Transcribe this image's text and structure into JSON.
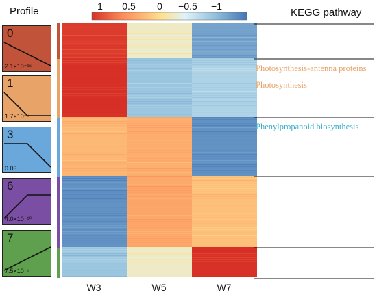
{
  "header": {
    "profile_title": "Profile",
    "kegg_title": "KEGG pathway"
  },
  "colorbar": {
    "ticks": [
      "1",
      "0.5",
      "0",
      "−0.5",
      "−1"
    ],
    "range": [
      1,
      -1
    ],
    "stops": [
      "#d73027",
      "#fc8d59",
      "#fee090",
      "#e0f3f8",
      "#91bfdb",
      "#4575b4"
    ]
  },
  "profiles": [
    {
      "id": "0",
      "pvalue": "2.1×10⁻¹⁶",
      "color": "#c0533a",
      "trend": [
        1,
        0.5,
        0
      ]
    },
    {
      "id": "1",
      "pvalue": "1.7×10⁻⁴",
      "color": "#e8a468",
      "trend": [
        1,
        0,
        0
      ]
    },
    {
      "id": "3",
      "pvalue": "0.03",
      "color": "#6aa8dc",
      "trend": [
        1,
        1,
        0
      ]
    },
    {
      "id": "6",
      "pvalue": "4.0×10⁻¹⁰",
      "color": "#7a4fa3",
      "trend": [
        0,
        1,
        1
      ]
    },
    {
      "id": "7",
      "pvalue": "7.5×10⁻⁴",
      "color": "#5fa04e",
      "trend": [
        0,
        0.5,
        1
      ]
    }
  ],
  "kegg_pathways": [
    {
      "label": "Photosynthesis-antenna proteins",
      "color": "#e8a468"
    },
    {
      "label": "Photosynthesis",
      "color": "#e8a468"
    },
    {
      "label": "Phenylpropanoid biosynthesis",
      "color": "#3fb0c9"
    }
  ],
  "chart_data": {
    "type": "heatmap",
    "columns": [
      "W3",
      "W5",
      "W7"
    ],
    "rows": [
      {
        "profile": "0",
        "values": [
          0.95,
          -0.05,
          -0.75
        ]
      },
      {
        "profile": "1",
        "values": [
          1.0,
          -0.55,
          -0.45
        ]
      },
      {
        "profile": "3",
        "values": [
          0.35,
          0.4,
          -0.85
        ]
      },
      {
        "profile": "6",
        "values": [
          -0.85,
          0.45,
          0.3
        ]
      },
      {
        "profile": "7",
        "values": [
          -0.55,
          -0.05,
          1.0
        ]
      }
    ],
    "color_range": [
      -1,
      1
    ]
  }
}
